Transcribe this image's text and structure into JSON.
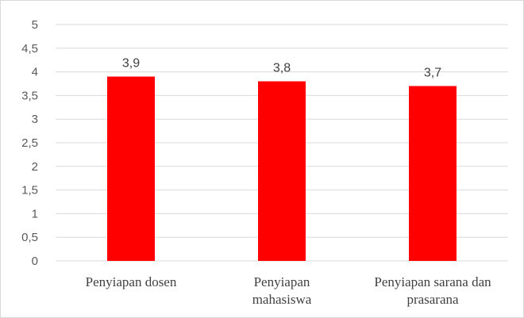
{
  "chart_data": {
    "type": "bar",
    "categories": [
      "Penyiapan dosen",
      "Penyiapan mahasiswa",
      "Penyiapan sarana dan prasarana"
    ],
    "category_lines": [
      [
        "Penyiapan dosen"
      ],
      [
        "Penyiapan",
        "mahasiswa"
      ],
      [
        "Penyiapan sarana dan",
        "prasarana"
      ]
    ],
    "values": [
      3.9,
      3.8,
      3.7
    ],
    "data_labels": [
      "3,9",
      "3,8",
      "3,7"
    ],
    "ylim": [
      0,
      5
    ],
    "yticks": [
      0,
      0.5,
      1,
      1.5,
      2,
      2.5,
      3,
      3.5,
      4,
      4.5,
      5
    ],
    "ytick_labels": [
      "0",
      "0,5",
      "1",
      "1,5",
      "2",
      "2,5",
      "3",
      "3,5",
      "4",
      "4,5",
      "5"
    ],
    "grid": true,
    "bar_color": "#ff0000",
    "grid_color": "#d9d9d9"
  }
}
